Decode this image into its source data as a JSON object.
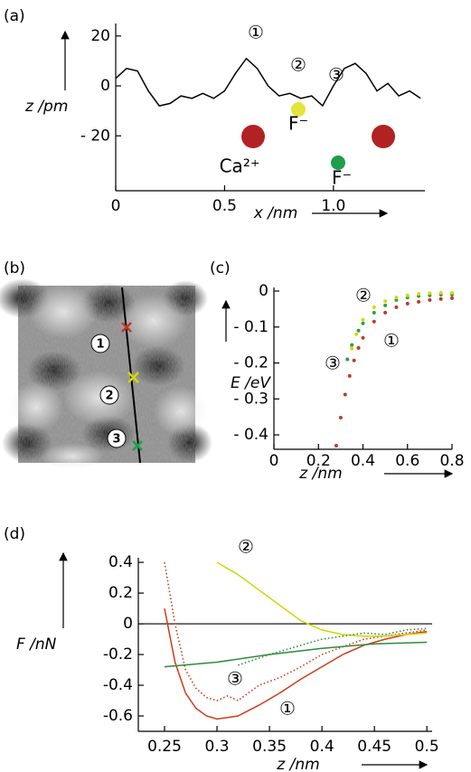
{
  "chart_data": [
    {
      "type": "line",
      "panel_label": "(a)",
      "y_label": "z /pm",
      "x_label": "x /nm",
      "xlim": [
        0,
        1.42
      ],
      "ylim": [
        -42,
        25
      ],
      "xticks": [
        0,
        0.5,
        {
          "value": 1,
          "label": "1.0"
        }
      ],
      "yticks": [
        20,
        0,
        {
          "value": -20,
          "label": "- 20"
        }
      ],
      "series": [
        {
          "color": "#000000",
          "x": [
            0,
            0.05,
            0.1,
            0.15,
            0.2,
            0.25,
            0.3,
            0.35,
            0.4,
            0.45,
            0.5,
            0.55,
            0.6,
            0.65,
            0.7,
            0.75,
            0.8,
            0.85,
            0.9,
            0.95,
            1.0,
            1.05,
            1.1,
            1.15,
            1.2,
            1.25,
            1.3,
            1.35,
            1.4
          ],
          "values": [
            3,
            7,
            6,
            -2,
            -8,
            -7,
            -4,
            -5,
            -3,
            -5,
            -2,
            5,
            11,
            7,
            0,
            -4,
            -3,
            -5,
            -4,
            -8,
            0,
            7,
            9,
            5,
            -2,
            1,
            -4,
            -2,
            -5
          ]
        }
      ],
      "annotations": [
        "①",
        "②",
        "③",
        "F⁻",
        "Ca²⁺",
        "F⁻"
      ]
    },
    {
      "type": "scatter",
      "panel_label": "(c)",
      "y_label": "E /eV",
      "x_label": "z /nm",
      "xlim": [
        0,
        0.8
      ],
      "ylim": [
        -0.44,
        0.01
      ],
      "xticks": [
        0,
        0.2,
        0.4,
        0.6,
        0.8
      ],
      "yticks": [
        0,
        {
          "value": -0.1,
          "label": "- 0.1"
        },
        {
          "value": -0.2,
          "label": "- 0.2"
        },
        {
          "value": -0.3,
          "label": "- 0.3"
        },
        {
          "value": -0.4,
          "label": "- 0.4"
        }
      ],
      "series": [
        {
          "color": "#c0392b",
          "x": [
            0.28,
            0.3,
            0.32,
            0.34,
            0.36,
            0.38,
            0.4,
            0.45,
            0.5,
            0.55,
            0.6,
            0.65,
            0.7,
            0.75,
            0.8
          ],
          "values": [
            -0.43,
            -0.352,
            -0.288,
            -0.236,
            -0.193,
            -0.158,
            -0.13,
            -0.085,
            -0.06,
            -0.045,
            -0.035,
            -0.03,
            -0.025,
            -0.022,
            -0.02
          ]
        },
        {
          "color": "#2e9e4a",
          "x": [
            0.33,
            0.35,
            0.38,
            0.4,
            0.45,
            0.5,
            0.55,
            0.6,
            0.65,
            0.7,
            0.75,
            0.8
          ],
          "values": [
            -0.19,
            -0.15,
            -0.11,
            -0.09,
            -0.06,
            -0.04,
            -0.025,
            -0.018,
            -0.014,
            -0.012,
            -0.01,
            -0.01
          ]
        },
        {
          "color": "#d8d800",
          "x": [
            0.35,
            0.37,
            0.4,
            0.45,
            0.5,
            0.55,
            0.6,
            0.65,
            0.7,
            0.75,
            0.8
          ],
          "values": [
            -0.16,
            -0.12,
            -0.08,
            -0.045,
            -0.028,
            -0.018,
            -0.012,
            -0.008,
            -0.006,
            -0.005,
            -0.005
          ]
        }
      ],
      "annotations": [
        "②",
        "③",
        "①"
      ]
    },
    {
      "type": "line",
      "panel_label": "(d)",
      "y_label": "F /nN",
      "x_label": "z /nm",
      "xlim": [
        0.225,
        0.505
      ],
      "ylim": [
        -0.7,
        0.43
      ],
      "zero_line": true,
      "xticks": [
        0.25,
        0.3,
        0.35,
        0.4,
        0.45,
        0.5
      ],
      "yticks": [
        0.4,
        0.2,
        0,
        -0.2,
        -0.4,
        -0.6
      ],
      "series": [
        {
          "color": "#d03a1a",
          "style": "solid",
          "x": [
            0.25,
            0.26,
            0.27,
            0.28,
            0.29,
            0.3,
            0.32,
            0.34,
            0.36,
            0.38,
            0.4,
            0.42,
            0.44,
            0.46,
            0.48,
            0.5
          ],
          "values": [
            0.1,
            -0.25,
            -0.45,
            -0.55,
            -0.6,
            -0.62,
            -0.6,
            -0.53,
            -0.45,
            -0.36,
            -0.28,
            -0.2,
            -0.14,
            -0.1,
            -0.07,
            -0.05
          ]
        },
        {
          "color": "#d03a1a",
          "style": "dotted",
          "x": [
            0.25,
            0.26,
            0.27,
            0.28,
            0.29,
            0.3,
            0.31,
            0.32,
            0.34,
            0.36,
            0.38,
            0.4,
            0.42,
            0.44,
            0.46,
            0.48,
            0.5
          ],
          "values": [
            0.4,
            0,
            -0.3,
            -0.42,
            -0.48,
            -0.5,
            -0.47,
            -0.5,
            -0.4,
            -0.35,
            -0.28,
            -0.2,
            -0.15,
            -0.1,
            -0.08,
            -0.06,
            -0.04
          ]
        },
        {
          "color": "#d4d400",
          "style": "solid",
          "x": [
            0.3,
            0.32,
            0.34,
            0.36,
            0.38,
            0.4,
            0.42,
            0.44,
            0.46,
            0.48,
            0.5
          ],
          "values": [
            0.4,
            0.32,
            0.22,
            0.12,
            0.02,
            -0.04,
            -0.07,
            -0.08,
            -0.08,
            -0.07,
            -0.06
          ]
        },
        {
          "color": "#2e8b3a",
          "style": "solid",
          "x": [
            0.25,
            0.3,
            0.35,
            0.4,
            0.45,
            0.5
          ],
          "values": [
            -0.28,
            -0.25,
            -0.2,
            -0.16,
            -0.13,
            -0.12
          ]
        },
        {
          "color": "#2e8b3a",
          "style": "dotted",
          "x": [
            0.32,
            0.35,
            0.38,
            0.4,
            0.42,
            0.44,
            0.46,
            0.48,
            0.5
          ],
          "values": [
            -0.27,
            -0.2,
            -0.14,
            -0.1,
            -0.08,
            -0.06,
            -0.07,
            -0.04,
            -0.03
          ]
        }
      ],
      "annotations": [
        "②",
        "③",
        "①"
      ]
    }
  ],
  "image_panel": {
    "panel_label": "(b)",
    "markers": [
      "1",
      "2",
      "3"
    ]
  }
}
